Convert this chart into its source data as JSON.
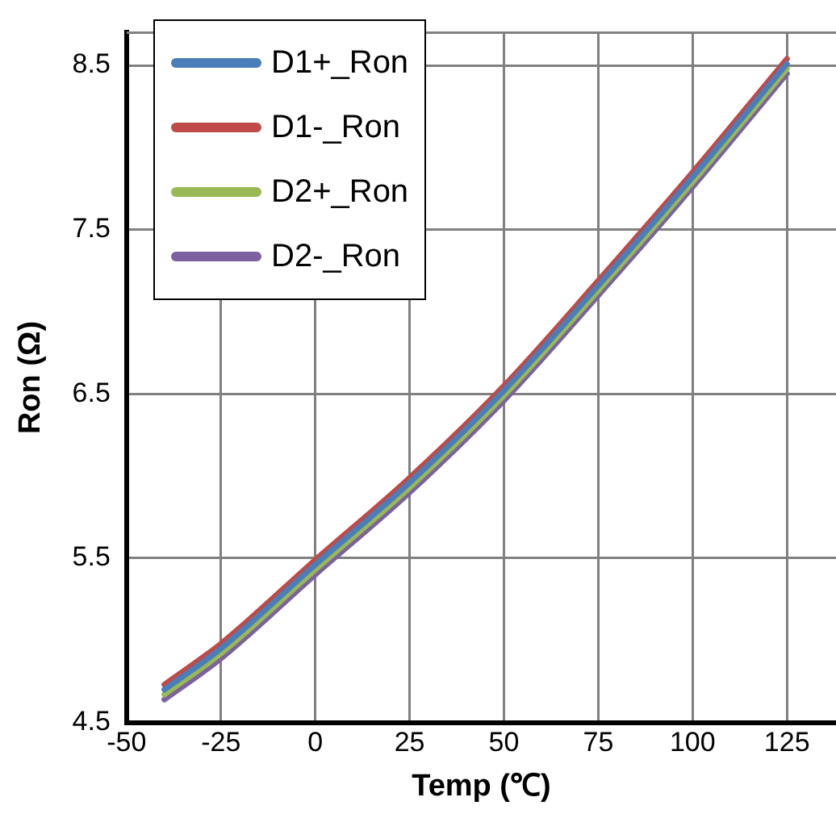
{
  "chart_data": {
    "type": "line",
    "xlabel": "Temp (℃)",
    "ylabel": "Ron (Ω)",
    "x": [
      -40,
      -25,
      0,
      25,
      50,
      75,
      100,
      125
    ],
    "series": [
      {
        "name": "D1+_Ron",
        "color": "#4a7ebb",
        "values": [
          4.7,
          4.95,
          5.46,
          5.96,
          6.52,
          7.16,
          7.82,
          8.51
        ]
      },
      {
        "name": "D1-_Ron",
        "color": "#be4b48",
        "values": [
          4.73,
          4.98,
          5.49,
          5.99,
          6.55,
          7.19,
          7.85,
          8.54
        ]
      },
      {
        "name": "D2+_Ron",
        "color": "#98b954",
        "values": [
          4.67,
          4.92,
          5.43,
          5.93,
          6.49,
          7.13,
          7.79,
          8.48
        ]
      },
      {
        "name": "D2-_Ron",
        "color": "#7d60a0",
        "values": [
          4.64,
          4.89,
          5.4,
          5.9,
          6.46,
          7.1,
          7.76,
          8.45
        ]
      }
    ],
    "xlim": [
      -50,
      138
    ],
    "ylim": [
      4.5,
      8.7
    ],
    "xticks": [
      -50,
      -25,
      0,
      25,
      50,
      75,
      100,
      125
    ],
    "yticks": [
      4.5,
      5.5,
      6.5,
      7.5,
      8.5
    ],
    "grid": true,
    "legend": "top left",
    "marker": "none",
    "line_style": "solid"
  }
}
